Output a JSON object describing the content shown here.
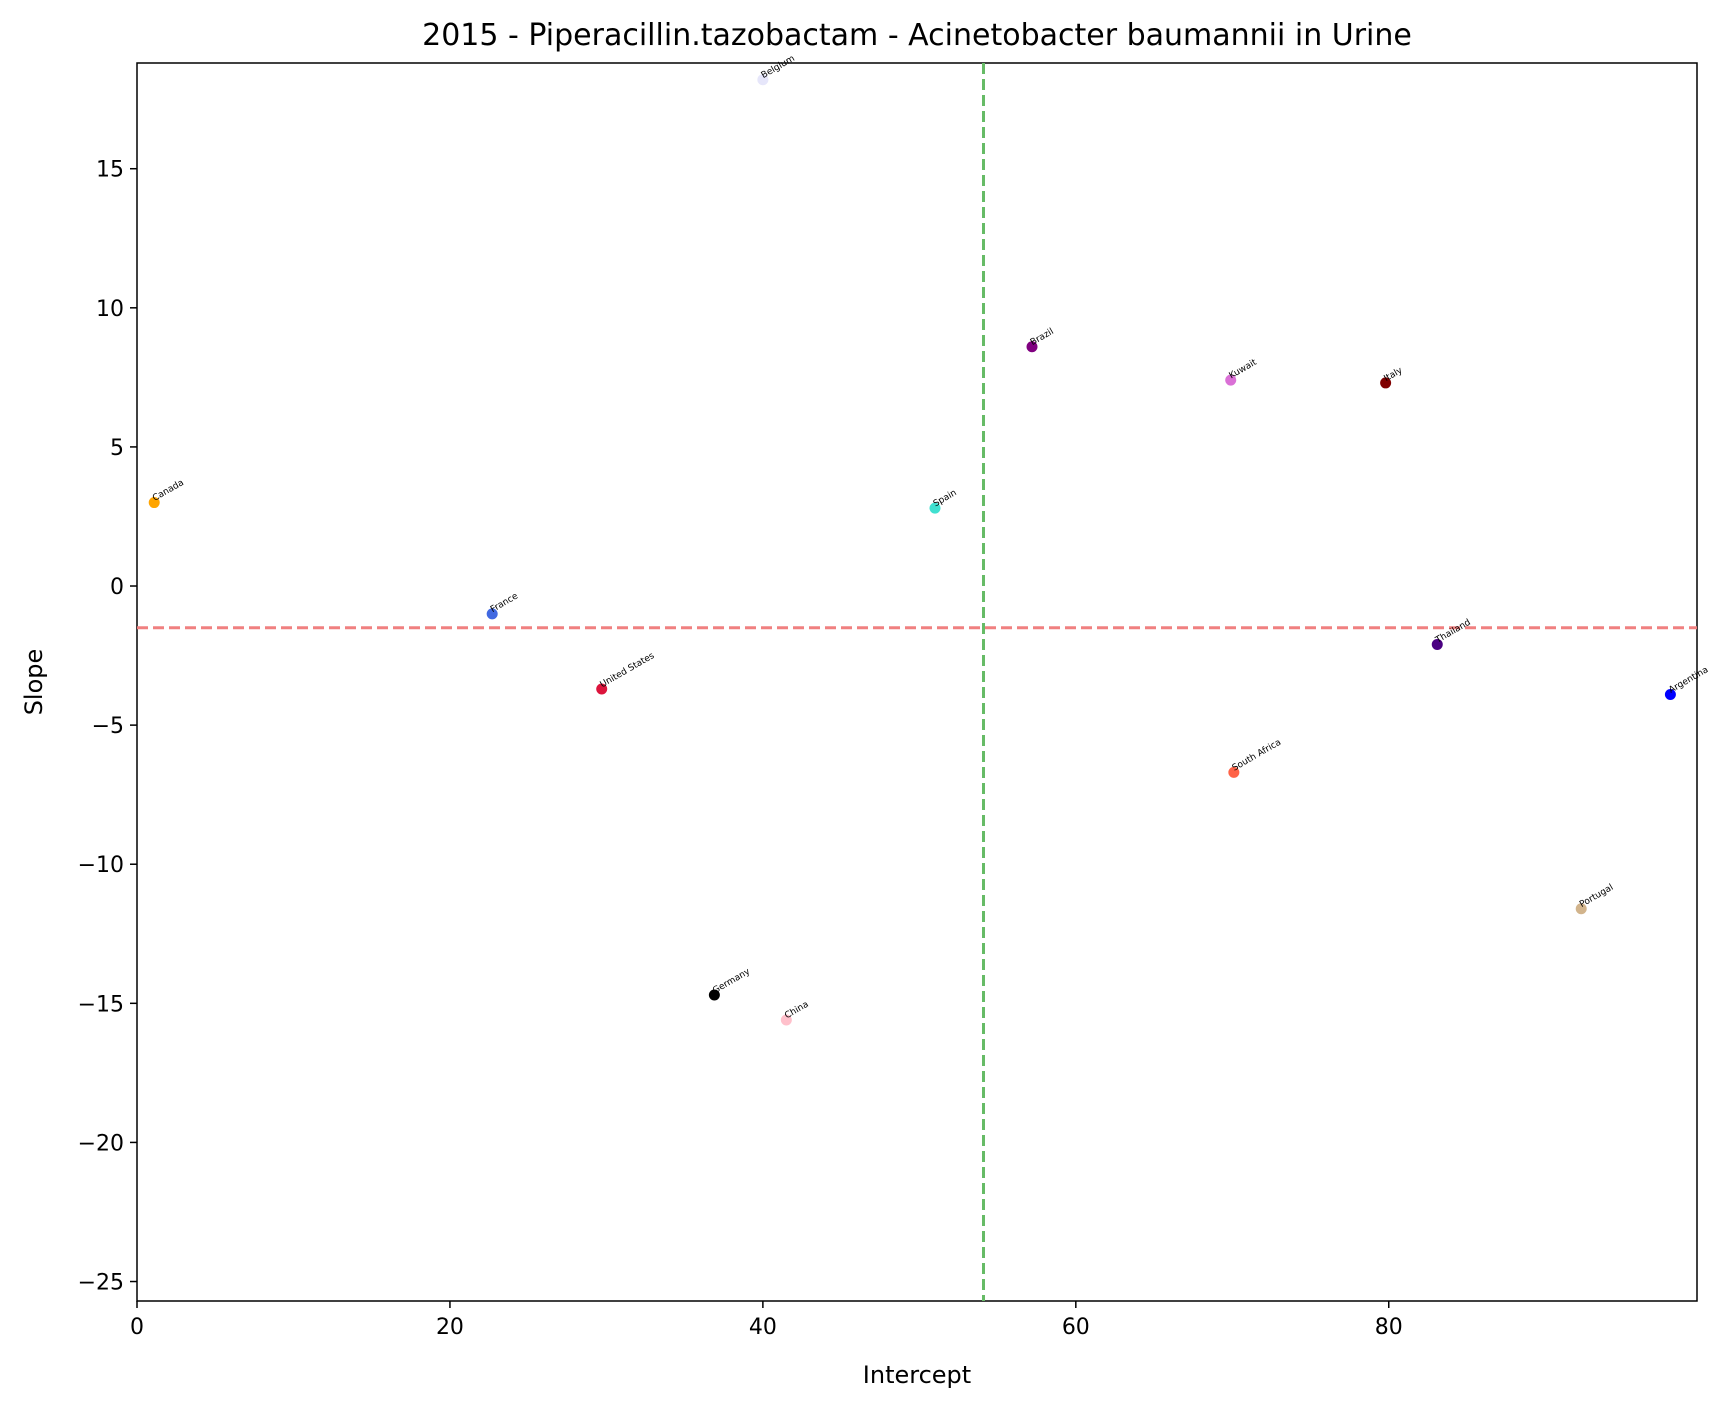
{
  "chart_data": {
    "type": "scatter",
    "title": "2015 - Piperacillin.tazobactam - Acinetobacter baumannii in Urine",
    "xlabel": "Intercept",
    "ylabel": "Slope",
    "xlim": [
      0,
      99.7
    ],
    "ylim": [
      -25.7,
      18.8
    ],
    "xticks": [
      0,
      20,
      40,
      60,
      80
    ],
    "yticks": [
      -25,
      -20,
      -15,
      -10,
      -5,
      0,
      5,
      10,
      15
    ],
    "grid": false,
    "reference_lines": {
      "horizontal": {
        "y": -1.5,
        "color": "#f08080",
        "style": "dashed"
      },
      "vertical": {
        "x": 54.1,
        "color": "#66bb66",
        "style": "dashed"
      }
    },
    "points": [
      {
        "label": "Belgium",
        "x": 40.0,
        "y": 18.2,
        "color": "#e6e6fa"
      },
      {
        "label": "Brazil",
        "x": 57.2,
        "y": 8.6,
        "color": "#800080"
      },
      {
        "label": "Kuwait",
        "x": 69.9,
        "y": 7.4,
        "color": "#da70d6"
      },
      {
        "label": "Italy",
        "x": 79.8,
        "y": 7.3,
        "color": "#800000"
      },
      {
        "label": "Canada",
        "x": 1.1,
        "y": 3.0,
        "color": "#ffa500"
      },
      {
        "label": "Spain",
        "x": 51.0,
        "y": 2.8,
        "color": "#40e0d0"
      },
      {
        "label": "France",
        "x": 22.7,
        "y": -1.0,
        "color": "#4169e1"
      },
      {
        "label": "Thailand",
        "x": 83.1,
        "y": -2.1,
        "color": "#4b0082"
      },
      {
        "label": "United States",
        "x": 29.7,
        "y": -3.7,
        "color": "#dc143c"
      },
      {
        "label": "Argentina",
        "x": 98.0,
        "y": -3.9,
        "color": "#0000ff"
      },
      {
        "label": "South Africa",
        "x": 70.1,
        "y": -6.7,
        "color": "#ff6347"
      },
      {
        "label": "Portugal",
        "x": 92.3,
        "y": -11.6,
        "color": "#d2b48c"
      },
      {
        "label": "Germany",
        "x": 36.9,
        "y": -14.7,
        "color": "#000000"
      },
      {
        "label": "China",
        "x": 41.5,
        "y": -15.6,
        "color": "#ffc0cb"
      }
    ]
  }
}
